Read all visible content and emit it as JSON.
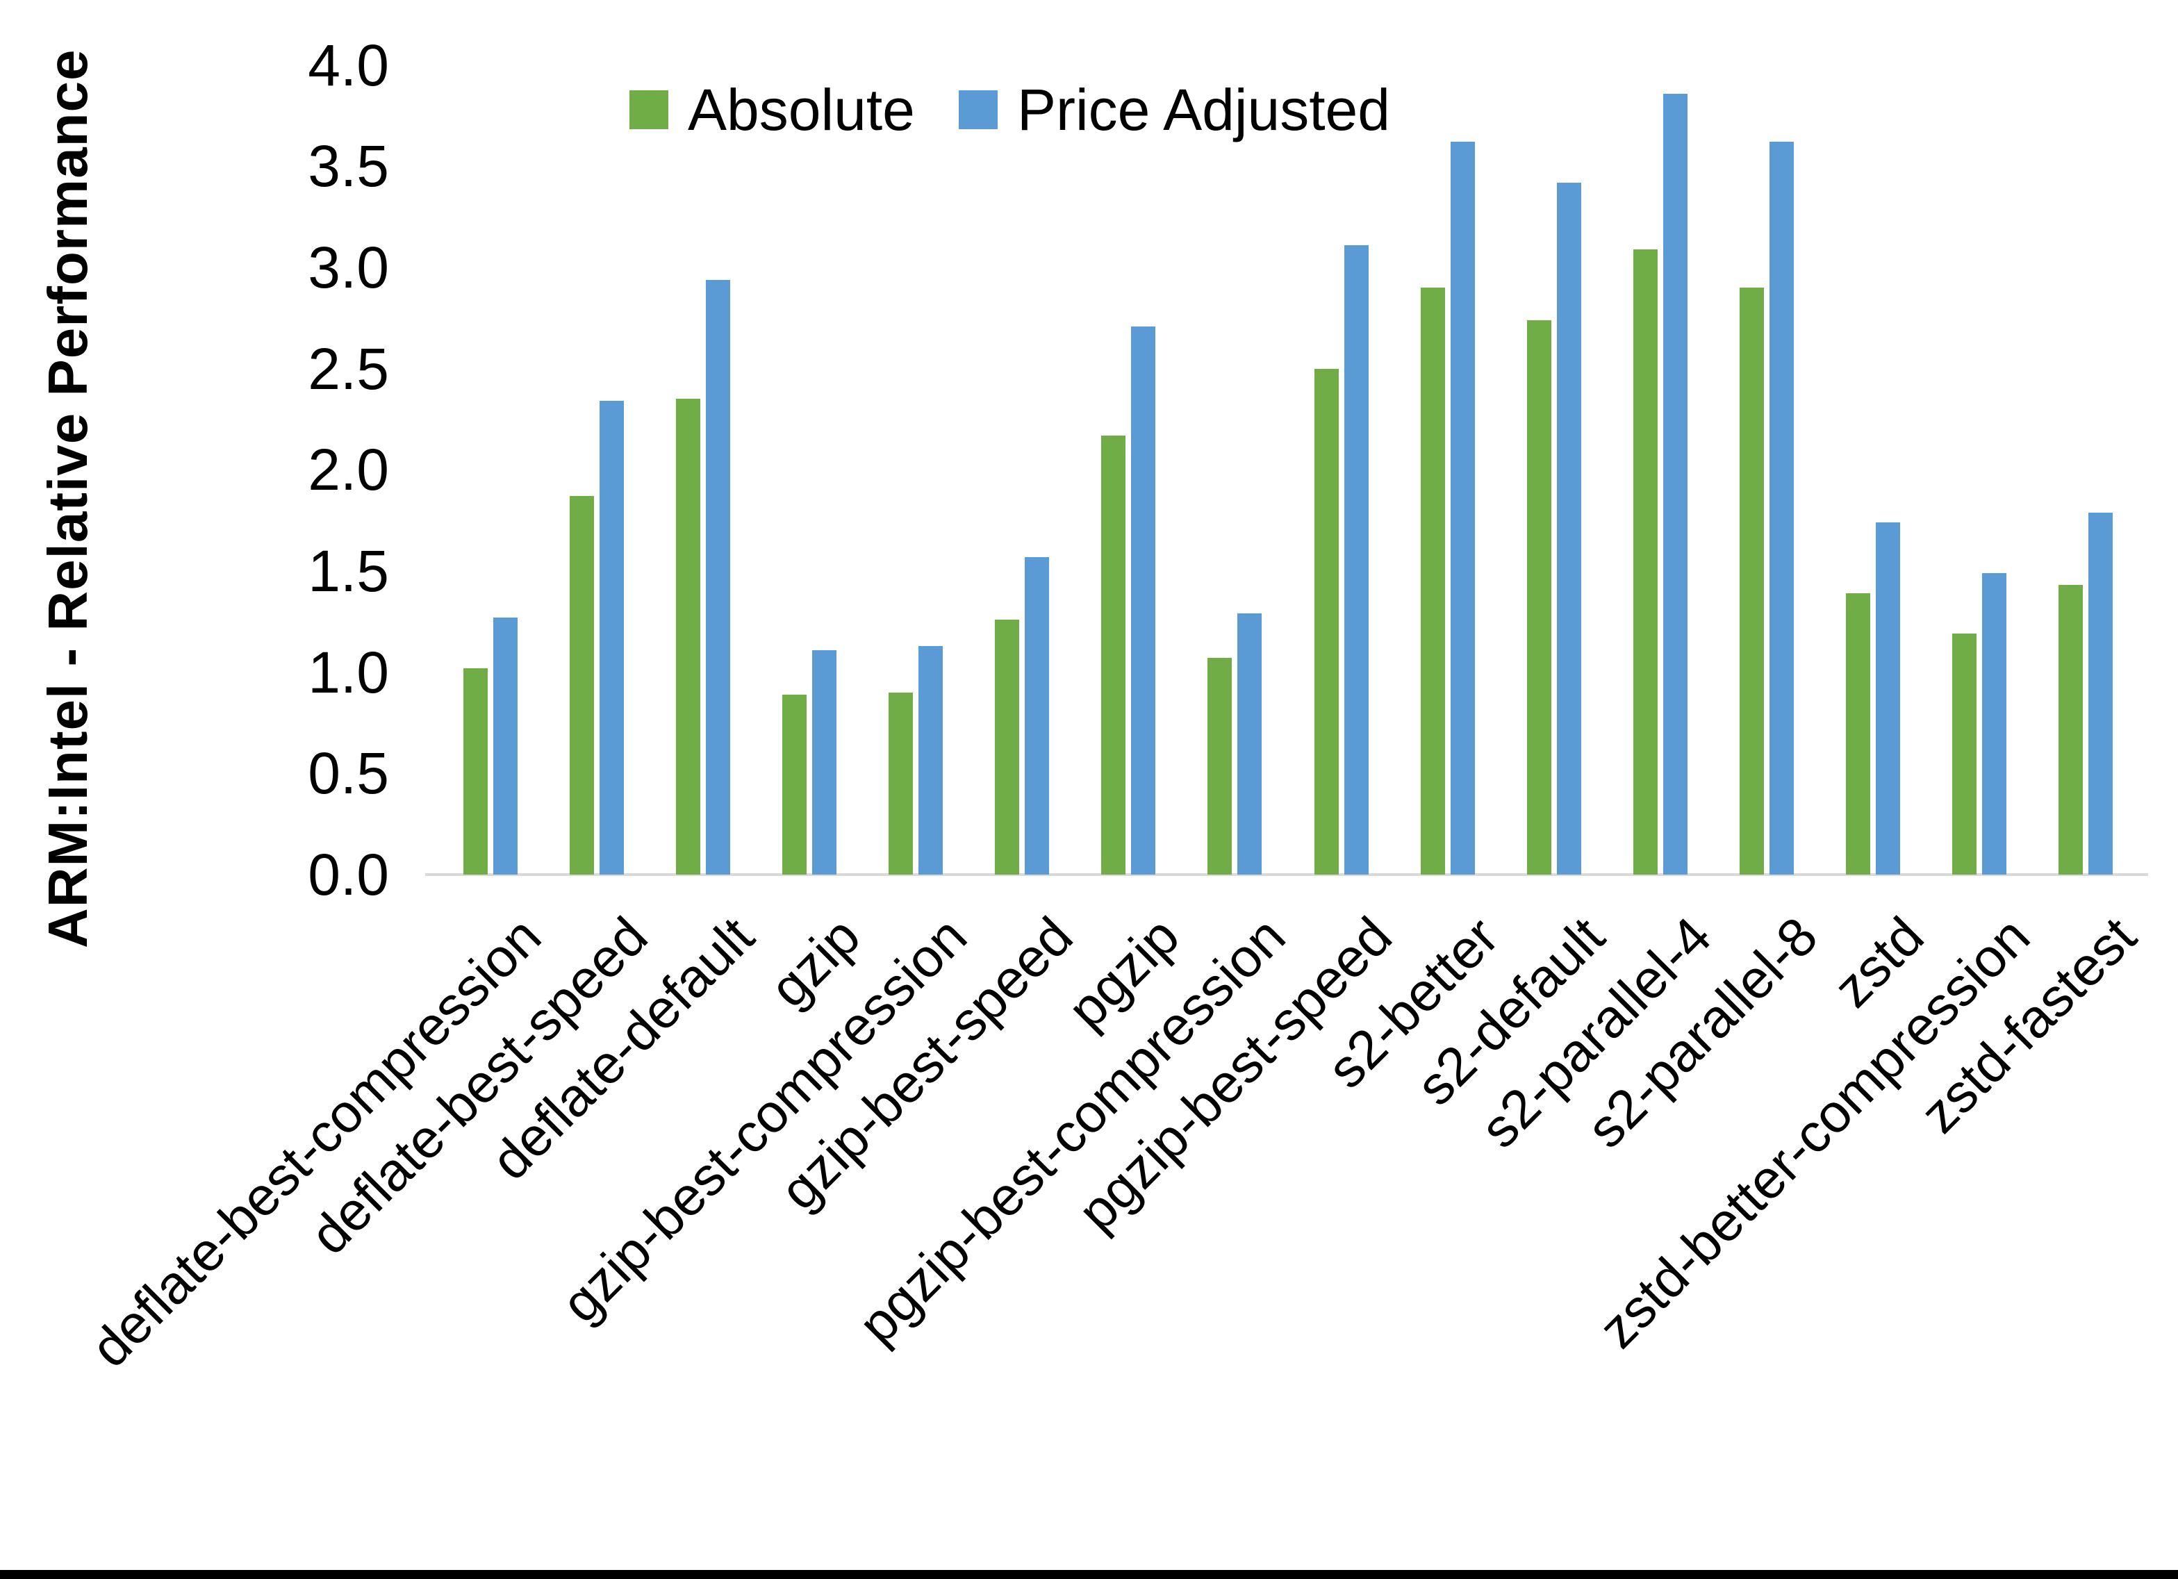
{
  "page": {
    "background": "#FFFFFF",
    "bottom_bar_color": "#000000",
    "axis_line_color": "#D9D9D9"
  },
  "chart_data": {
    "type": "bar",
    "title": "",
    "xlabel": "",
    "ylabel": "ARM:Intel - Relative Performance",
    "ylim": [
      0.0,
      4.0
    ],
    "ytick_step": 0.5,
    "y_ticks": [
      "0.0",
      "0.5",
      "1.0",
      "1.5",
      "2.0",
      "2.5",
      "3.0",
      "3.5",
      "4.0"
    ],
    "grid": false,
    "legend_position": "top-center",
    "categories": [
      "deflate-best-compression",
      "deflate-best-speed",
      "deflate-default",
      "gzip",
      "gzip-best-compression",
      "gzip-best-speed",
      "pgzip",
      "pgzip-best-compression",
      "pgzip-best-speed",
      "s2-better",
      "s2-default",
      "s2-parallel-4",
      "s2-parallel-8",
      "zstd",
      "zstd-better-compression",
      "zstd-fastest"
    ],
    "series": [
      {
        "name": "Absolute",
        "color": "#70AD47",
        "values": [
          1.02,
          1.87,
          2.35,
          0.89,
          0.9,
          1.26,
          2.17,
          1.07,
          2.5,
          2.9,
          2.74,
          3.09,
          2.9,
          1.39,
          1.19,
          1.43
        ]
      },
      {
        "name": "Price Adjusted",
        "color": "#5B9BD5",
        "values": [
          1.27,
          2.34,
          2.94,
          1.11,
          1.13,
          1.57,
          2.71,
          1.29,
          3.11,
          3.62,
          3.42,
          3.86,
          3.62,
          1.74,
          1.49,
          1.79
        ]
      }
    ]
  }
}
